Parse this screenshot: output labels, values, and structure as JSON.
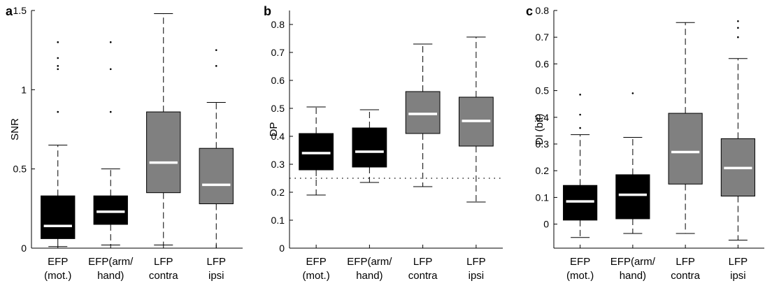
{
  "colors": {
    "efp_box": "#000000",
    "lfp_box": "#808080",
    "median": "#ffffff",
    "whisker": "#000000"
  },
  "chart_data": [
    {
      "type": "box",
      "panel": "a",
      "ylabel": "SNR",
      "ylim": [
        0,
        1.5
      ],
      "yticks": [
        "0",
        "0.5",
        "1",
        "1.5"
      ],
      "reference_line": null,
      "categories": [
        [
          "EFP",
          "(mot.)"
        ],
        [
          "EFP(arm/",
          "hand)"
        ],
        [
          "LFP",
          "contra"
        ],
        [
          "LFP",
          "ipsi"
        ]
      ],
      "boxes": [
        {
          "q1": 0.06,
          "median": 0.14,
          "q3": 0.33,
          "whisker_low": 0.01,
          "whisker_high": 0.65,
          "outliers": [
            0.86,
            1.13,
            1.15,
            1.2,
            1.3
          ],
          "color": "#000000"
        },
        {
          "q1": 0.15,
          "median": 0.23,
          "q3": 0.33,
          "whisker_low": 0.02,
          "whisker_high": 0.5,
          "outliers": [
            0.86,
            1.13,
            1.3
          ],
          "color": "#000000"
        },
        {
          "q1": 0.35,
          "median": 0.54,
          "q3": 0.86,
          "whisker_low": 0.02,
          "whisker_high": 1.48,
          "outliers": [],
          "color": "#808080"
        },
        {
          "q1": 0.28,
          "median": 0.4,
          "q3": 0.63,
          "whisker_low": 0.0,
          "whisker_high": 0.92,
          "outliers": [
            1.15,
            1.25
          ],
          "color": "#808080"
        }
      ]
    },
    {
      "type": "box",
      "panel": "b",
      "ylabel": "DP",
      "ylim": [
        0,
        0.85
      ],
      "yticks": [
        "0",
        "0.1",
        "0.2",
        "0.3",
        "0.4",
        "0.5",
        "0.6",
        "0.7",
        "0.8"
      ],
      "reference_line": 0.25,
      "categories": [
        [
          "EFP",
          "(mot.)"
        ],
        [
          "EFP(arm/",
          "hand)"
        ],
        [
          "LFP",
          "contra"
        ],
        [
          "LFP",
          "ipsi"
        ]
      ],
      "boxes": [
        {
          "q1": 0.28,
          "median": 0.34,
          "q3": 0.41,
          "whisker_low": 0.19,
          "whisker_high": 0.505,
          "outliers": [],
          "color": "#000000"
        },
        {
          "q1": 0.29,
          "median": 0.345,
          "q3": 0.43,
          "whisker_low": 0.235,
          "whisker_high": 0.495,
          "outliers": [],
          "color": "#000000"
        },
        {
          "q1": 0.41,
          "median": 0.48,
          "q3": 0.56,
          "whisker_low": 0.22,
          "whisker_high": 0.73,
          "outliers": [],
          "color": "#808080"
        },
        {
          "q1": 0.365,
          "median": 0.455,
          "q3": 0.54,
          "whisker_low": 0.165,
          "whisker_high": 0.755,
          "outliers": [],
          "color": "#808080"
        }
      ]
    },
    {
      "type": "box",
      "panel": "c",
      "ylabel": "DI (bit)",
      "ylim": [
        -0.09,
        0.8
      ],
      "yticks": [
        "0",
        "0.1",
        "0.2",
        "0.3",
        "0.4",
        "0.5",
        "0.6",
        "0.7",
        "0.8"
      ],
      "reference_line": null,
      "categories": [
        [
          "EFP",
          "(mot.)"
        ],
        [
          "EFP(arm/",
          "hand)"
        ],
        [
          "LFP",
          "contra"
        ],
        [
          "LFP",
          "ipsi"
        ]
      ],
      "boxes": [
        {
          "q1": 0.015,
          "median": 0.085,
          "q3": 0.145,
          "whisker_low": -0.05,
          "whisker_high": 0.335,
          "outliers": [
            0.36,
            0.41,
            0.485
          ],
          "color": "#000000"
        },
        {
          "q1": 0.02,
          "median": 0.11,
          "q3": 0.185,
          "whisker_low": -0.035,
          "whisker_high": 0.325,
          "outliers": [
            0.49
          ],
          "color": "#000000"
        },
        {
          "q1": 0.15,
          "median": 0.27,
          "q3": 0.415,
          "whisker_low": -0.035,
          "whisker_high": 0.755,
          "outliers": [],
          "color": "#808080"
        },
        {
          "q1": 0.105,
          "median": 0.21,
          "q3": 0.32,
          "whisker_low": -0.06,
          "whisker_high": 0.62,
          "outliers": [
            0.7,
            0.735,
            0.76
          ],
          "color": "#808080"
        }
      ]
    }
  ]
}
